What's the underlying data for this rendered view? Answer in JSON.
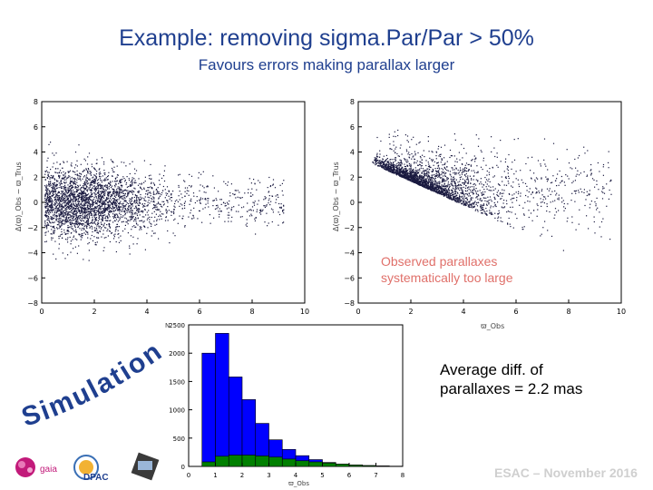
{
  "slide": {
    "title": "Example: removing sigma.Par/Par > 50%",
    "subtitle": "Favours errors making parallax larger",
    "note_line1": "Observed parallaxes",
    "note_line2": "systematically too large",
    "avg_line1": "Average diff. of",
    "avg_line2": "parallaxes = 2.2 mas",
    "footer": "ESAC – November 2016",
    "simulation_label": "Simulation !",
    "logos": [
      "gaia-logo-icon",
      "dpac-logo-icon",
      "satellite-logo-icon"
    ],
    "logo_text_gaia": "gaia",
    "logo_text_dpac": "DPAC",
    "colors": {
      "title": "#1f3f8f",
      "note": "#e0706a",
      "simulation": "#1f3f8f",
      "hist_all": "#0000ff",
      "hist_sub": "#008000",
      "points": "#1a1a40"
    }
  },
  "chart_data": [
    {
      "type": "scatter",
      "title": "",
      "xlabel": "",
      "ylabel": "Δ(ϖ)_Obs − ϖ_Trus",
      "xlim": [
        0,
        10
      ],
      "ylim": [
        -8,
        8
      ],
      "xticks": [
        "0",
        "2",
        "4",
        "6",
        "8",
        "10"
      ],
      "yticks": [
        "−8",
        "−6",
        "−4",
        "−2",
        "0",
        "2",
        "4",
        "6",
        "8"
      ],
      "description_points": "dense cloud centred near y=0, x 0.5–4, spreading to x≈9",
      "grid": false
    },
    {
      "type": "scatter",
      "title": "",
      "xlabel": "ϖ_Obs",
      "ylabel": "Δ(ϖ)_Obs − ϖ_Trus",
      "xlim": [
        0,
        10
      ],
      "ylim": [
        -8,
        8
      ],
      "xticks": [
        "0",
        "2",
        "4",
        "6",
        "8",
        "10"
      ],
      "yticks": [
        "−8",
        "−6",
        "−4",
        "−2",
        "0",
        "2",
        "4",
        "6",
        "8"
      ],
      "grid": false
    },
    {
      "type": "bar",
      "title": "",
      "xlabel": "ϖ_Obs",
      "ylabel": "N",
      "xlim": [
        0,
        8
      ],
      "ylim": [
        0,
        2500
      ],
      "xticks": [
        "0",
        "1",
        "2",
        "3",
        "4",
        "5",
        "6",
        "7",
        "8"
      ],
      "yticks": [
        "0",
        "500",
        "1000",
        "1500",
        "2000",
        "2500"
      ],
      "bin_edges": [
        0.5,
        1,
        1.5,
        2,
        2.5,
        3,
        3.5,
        4,
        4.5,
        5,
        5.5,
        6,
        6.5,
        7,
        7.5,
        8
      ],
      "series": [
        {
          "values": [
            2000,
            2350,
            1580,
            1180,
            760,
            470,
            300,
            190,
            120,
            70,
            40,
            25,
            15,
            8,
            4
          ]
        },
        {
          "values": [
            80,
            180,
            200,
            200,
            185,
            165,
            130,
            100,
            80,
            60,
            40,
            25,
            15,
            8,
            4
          ]
        }
      ]
    }
  ]
}
